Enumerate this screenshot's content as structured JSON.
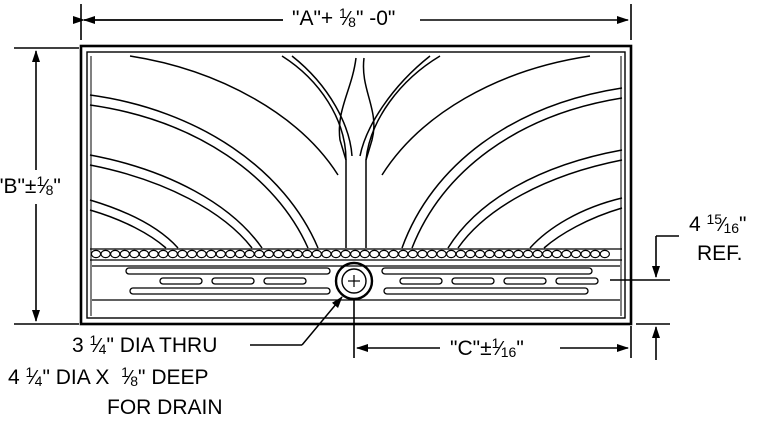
{
  "dimensions": {
    "width": {
      "prefix": "\"A\"+ ",
      "fraction": {
        "num": "1",
        "den": "8"
      },
      "suffix": "\" -0\""
    },
    "height": {
      "prefix": "\"B\"±",
      "fraction": {
        "num": "1",
        "den": "8"
      },
      "suffix": "\""
    },
    "drain_offset": {
      "prefix": "\"C\"±",
      "fraction": {
        "num": "1",
        "den": "16"
      },
      "suffix": "\""
    },
    "reference_height": {
      "whole": "4 ",
      "fraction": {
        "num": "15",
        "den": "16"
      },
      "suffix": "\"",
      "note": "REF."
    }
  },
  "drain_callout": {
    "line1": {
      "whole": "3 ",
      "fraction": {
        "num": "1",
        "den": "4"
      },
      "suffix": "\" DIA THRU"
    },
    "line2": {
      "whole": "4 ",
      "fraction": {
        "num": "1",
        "den": "4"
      },
      "middle": "\" DIA X  ",
      "fraction2": {
        "num": "1",
        "den": "8"
      },
      "suffix": "\" DEEP"
    },
    "line3": "FOR DRAIN"
  },
  "colors": {
    "line": "#000000",
    "background": "#ffffff"
  }
}
